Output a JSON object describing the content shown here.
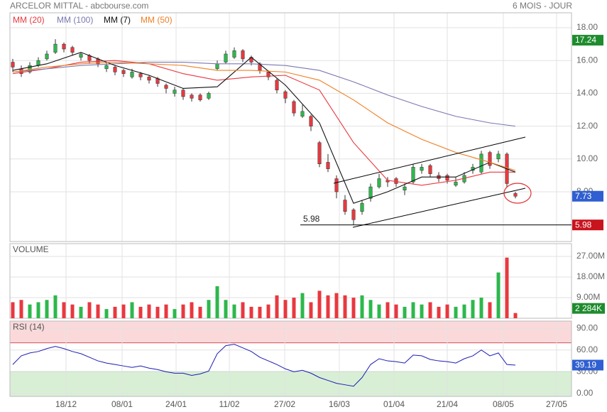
{
  "chart_data": [
    {
      "type": "candlestick",
      "title": "ARCELOR MITTAL - abcbourse.com",
      "subtitle": "6 MOIS - JOUR",
      "open": [
        15.9,
        15.5,
        15.3,
        15.7,
        16.1,
        16.5,
        17.0,
        16.8,
        16.2,
        16.3,
        16.1,
        15.5,
        15.6,
        15.4,
        15.0,
        15.2,
        15.0,
        14.9,
        14.5,
        14.0,
        14.2,
        13.9,
        13.9,
        13.7,
        15.5,
        15.9,
        16.2,
        16.6,
        16.2,
        15.8,
        15.3,
        14.8,
        14.1,
        13.5,
        12.6,
        12.6,
        11.0,
        9.8,
        8.8,
        7.5,
        6.9,
        6.8,
        7.6,
        8.3,
        8.7,
        8.8,
        8.1,
        8.6,
        9.3,
        9.6,
        9.0,
        9.0,
        8.4,
        8.6,
        9.3,
        9.2,
        10.4,
        10.0,
        10.3,
        7.9
      ],
      "high": [
        16.1,
        15.7,
        15.9,
        16.2,
        16.6,
        17.3,
        17.1,
        16.9,
        16.5,
        16.4,
        16.2,
        15.9,
        15.7,
        15.5,
        15.5,
        15.3,
        15.1,
        15.0,
        14.6,
        14.4,
        14.3,
        14.0,
        14.0,
        14.1,
        16.0,
        16.6,
        16.8,
        16.7,
        16.3,
        15.9,
        15.4,
        14.9,
        14.2,
        13.6,
        13.3,
        12.7,
        11.1,
        10.3,
        9.0,
        7.8,
        7.0,
        7.5,
        8.5,
        9.1,
        8.9,
        8.9,
        8.5,
        9.7,
        9.7,
        9.7,
        9.2,
        9.1,
        8.9,
        9.2,
        9.7,
        10.5,
        10.5,
        10.5,
        10.4,
        8.0
      ],
      "low": [
        15.3,
        15.0,
        15.2,
        15.6,
        16.0,
        16.4,
        16.5,
        16.3,
        16.0,
        15.8,
        15.6,
        15.3,
        15.1,
        15.0,
        14.9,
        14.8,
        14.6,
        14.4,
        14.0,
        13.8,
        13.6,
        13.5,
        13.5,
        13.6,
        15.4,
        15.8,
        16.1,
        15.9,
        15.7,
        15.2,
        14.8,
        14.0,
        13.4,
        12.6,
        12.5,
        11.7,
        9.5,
        9.2,
        7.6,
        6.6,
        5.98,
        6.6,
        7.4,
        8.2,
        8.3,
        8.3,
        7.8,
        8.5,
        9.1,
        8.9,
        8.6,
        8.5,
        8.3,
        8.5,
        9.1,
        9.1,
        9.4,
        9.8,
        8.3,
        7.6
      ],
      "close": [
        15.6,
        15.2,
        15.7,
        16.0,
        16.4,
        17.0,
        16.7,
        16.5,
        16.4,
        16.0,
        15.8,
        15.7,
        15.3,
        15.2,
        15.3,
        15.0,
        14.8,
        14.6,
        14.3,
        14.2,
        13.8,
        13.7,
        13.6,
        14.0,
        15.8,
        16.4,
        16.6,
        16.1,
        15.9,
        15.4,
        15.0,
        14.2,
        13.7,
        12.8,
        12.9,
        12.0,
        9.7,
        9.4,
        8.0,
        6.8,
        6.3,
        7.3,
        8.3,
        8.8,
        8.6,
        8.5,
        8.3,
        9.5,
        9.5,
        9.1,
        8.8,
        8.7,
        8.6,
        9.0,
        9.5,
        10.3,
        9.6,
        10.3,
        8.5,
        7.73
      ],
      "up_color": "#2db84c",
      "down_color": "#e8383f",
      "series": [
        {
          "name": "MM (20)",
          "color": "#e8383f",
          "x": [
            0,
            4,
            8,
            12,
            16,
            20,
            24,
            28,
            32,
            36,
            40,
            44,
            48,
            52,
            56,
            59
          ],
          "values": [
            15.2,
            15.5,
            15.9,
            16.0,
            15.8,
            15.2,
            14.8,
            15.0,
            15.1,
            14.2,
            11.0,
            8.7,
            8.4,
            8.7,
            9.2,
            9.2
          ]
        },
        {
          "name": "MM (100)",
          "color": "#7a78b0",
          "x": [
            0,
            4,
            8,
            12,
            16,
            20,
            24,
            28,
            32,
            36,
            40,
            44,
            48,
            52,
            56,
            59
          ],
          "values": [
            15.3,
            15.5,
            15.7,
            15.8,
            15.9,
            15.9,
            15.8,
            15.8,
            15.7,
            15.4,
            14.7,
            13.9,
            13.2,
            12.6,
            12.2,
            12.0
          ]
        },
        {
          "name": "MM (7)",
          "color": "#111111",
          "x": [
            0,
            4,
            8,
            12,
            16,
            20,
            24,
            28,
            32,
            36,
            40,
            44,
            48,
            52,
            56,
            59
          ],
          "values": [
            15.4,
            15.8,
            16.5,
            15.7,
            15.1,
            14.3,
            14.4,
            16.2,
            14.5,
            12.2,
            7.3,
            8.0,
            8.9,
            8.9,
            9.8,
            9.2
          ]
        },
        {
          "name": "MM (50)",
          "color": "#f07f24",
          "x": [
            0,
            4,
            8,
            12,
            16,
            20,
            24,
            28,
            32,
            36,
            40,
            44,
            48,
            52,
            56,
            59
          ],
          "values": [
            15.3,
            15.6,
            15.8,
            15.9,
            15.8,
            15.7,
            15.4,
            15.4,
            15.3,
            14.8,
            13.6,
            12.2,
            11.2,
            10.4,
            9.8,
            9.3
          ]
        }
      ],
      "xlim": [
        -0.333,
        65.583
      ],
      "xticks": [
        {
          "value": 6.25,
          "label": "18/12"
        },
        {
          "value": 12.83,
          "label": "08/01"
        },
        {
          "value": 19.17,
          "label": "24/01"
        },
        {
          "value": 25.42,
          "label": "11/02"
        },
        {
          "value": 31.92,
          "label": "27/02"
        },
        {
          "value": 38.33,
          "label": "16/03"
        },
        {
          "value": 44.75,
          "label": "01/04"
        },
        {
          "value": 51,
          "label": "21/04"
        },
        {
          "value": 57.58,
          "label": "08/05"
        },
        {
          "value": 63.83,
          "label": "27/05"
        }
      ],
      "ylim": [
        4.97,
        18.91
      ],
      "yticks": [
        {
          "value": 8,
          "label": "8.00"
        },
        {
          "value": 10,
          "label": "10.00"
        },
        {
          "value": 12,
          "label": "12.00"
        },
        {
          "value": 14,
          "label": "14.00"
        },
        {
          "value": 16,
          "label": "16.00"
        },
        {
          "value": 18,
          "label": "18.00"
        }
      ],
      "grid": true,
      "support": 5.98,
      "price_labels": [
        {
          "value": 17.24,
          "color": "#1e8c2e"
        },
        {
          "value": 7.73,
          "color": "#2f5fd0"
        },
        {
          "value": 5.98,
          "color": "#c8141e"
        }
      ]
    },
    {
      "type": "bar",
      "title": "VOLUME",
      "values": [
        7,
        8,
        6,
        7,
        8,
        10,
        7,
        6,
        5,
        7,
        6,
        4,
        5,
        6,
        7,
        5,
        6,
        5,
        6,
        4,
        6,
        7,
        5,
        8,
        14,
        8,
        6,
        7,
        5,
        5,
        6,
        10,
        8,
        9,
        11,
        7,
        12,
        10,
        11,
        10,
        9,
        10,
        8,
        6,
        7,
        6,
        5,
        7,
        6,
        7,
        5,
        6,
        5,
        6,
        8,
        9,
        7,
        20,
        26.5,
        2.284
      ],
      "ylim": [
        0,
        32.6
      ],
      "yticks": [
        {
          "value": 9,
          "label": "9.00M"
        },
        {
          "value": 18,
          "label": "18.00M"
        },
        {
          "value": 27,
          "label": "27.00M"
        }
      ],
      "last_label": {
        "value": 2.284,
        "label": "2 284K",
        "color": "#1e8c2e"
      }
    },
    {
      "type": "line",
      "title": "RSI (14)",
      "color": "#1c1cb4",
      "values": [
        40,
        52,
        56,
        58,
        62,
        65,
        62,
        58,
        55,
        50,
        45,
        42,
        40,
        38,
        36,
        38,
        35,
        33,
        30,
        28,
        28,
        25,
        27,
        31,
        55,
        66,
        68,
        63,
        58,
        50,
        45,
        40,
        34,
        30,
        32,
        28,
        22,
        18,
        14,
        12,
        10,
        22,
        40,
        48,
        45,
        44,
        42,
        53,
        52,
        47,
        45,
        44,
        42,
        48,
        52,
        60,
        52,
        56,
        40,
        39.19
      ],
      "ylim": [
        -4,
        100
      ],
      "yticks": [
        {
          "value": 0,
          "label": "0.00"
        },
        {
          "value": 30,
          "label": "30.00"
        },
        {
          "value": 60,
          "label": "60.00"
        },
        {
          "value": 90,
          "label": "90.00"
        }
      ],
      "overbought": 70,
      "oversold": 30,
      "last_label": {
        "value": 39.19,
        "color": "#2f5fd0"
      }
    }
  ]
}
